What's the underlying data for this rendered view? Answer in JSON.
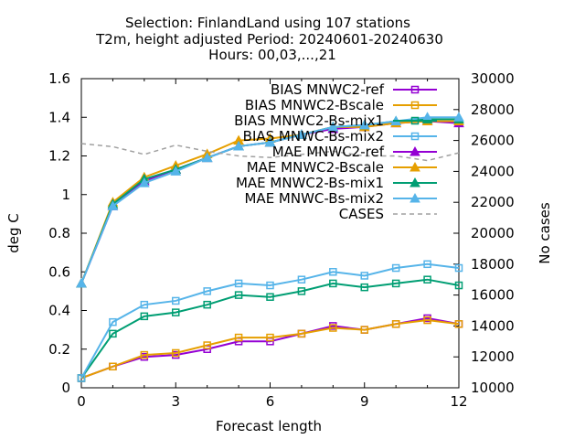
{
  "chart_data": {
    "type": "line",
    "title": [
      "Selection: FinlandLand using   107 stations",
      "T2m, height adjusted   Period: 20240601-20240630",
      "Hours: 00,03,...,21"
    ],
    "xlabel": "Forecast length",
    "ylabel": "deg C",
    "y2label": "No cases",
    "xlim": [
      0,
      12
    ],
    "ylim": [
      0,
      1.6
    ],
    "y2lim": [
      10000,
      30000
    ],
    "x_ticks": [
      "0",
      "3",
      "6",
      "9",
      "12"
    ],
    "y_ticks": [
      "0",
      "0.2",
      "0.4",
      "0.6",
      "0.8",
      "1",
      "1.2",
      "1.4",
      "1.6"
    ],
    "y2_ticks": [
      "10000",
      "12000",
      "14000",
      "16000",
      "18000",
      "20000",
      "22000",
      "24000",
      "26000",
      "28000",
      "30000"
    ],
    "legend_position": "top-right",
    "x": [
      0,
      1,
      2,
      3,
      4,
      5,
      6,
      7,
      8,
      9,
      10,
      11,
      12
    ],
    "series": [
      {
        "name": "BIAS MNWC2-ref",
        "color": "#9400d3",
        "marker": "square",
        "axis": "y",
        "values": [
          0.05,
          0.11,
          0.16,
          0.17,
          0.2,
          0.24,
          0.24,
          0.28,
          0.32,
          0.3,
          0.33,
          0.36,
          0.33
        ]
      },
      {
        "name": "BIAS MNWC2-Bscale",
        "color": "#e69f00",
        "marker": "square",
        "axis": "y",
        "values": [
          0.05,
          0.11,
          0.17,
          0.18,
          0.22,
          0.26,
          0.26,
          0.28,
          0.31,
          0.3,
          0.33,
          0.35,
          0.33
        ]
      },
      {
        "name": "BIAS MNWC2-Bs-mix1",
        "color": "#009e73",
        "marker": "square",
        "axis": "y",
        "values": [
          0.05,
          0.28,
          0.37,
          0.39,
          0.43,
          0.48,
          0.47,
          0.5,
          0.54,
          0.52,
          0.54,
          0.56,
          0.53
        ]
      },
      {
        "name": "BIAS MNWC-Bs-mix2",
        "color": "#56b4e9",
        "marker": "square",
        "axis": "y",
        "values": [
          0.05,
          0.34,
          0.43,
          0.45,
          0.5,
          0.54,
          0.53,
          0.56,
          0.6,
          0.58,
          0.62,
          0.64,
          0.62
        ]
      },
      {
        "name": "MAE MNWC2-ref",
        "color": "#9400d3",
        "marker": "triangle",
        "axis": "y",
        "values": [
          0.54,
          0.94,
          1.07,
          1.13,
          1.19,
          1.25,
          1.27,
          1.31,
          1.34,
          1.35,
          1.37,
          1.38,
          1.37
        ]
      },
      {
        "name": "MAE MNWC2-Bscale",
        "color": "#e69f00",
        "marker": "triangle",
        "axis": "y",
        "values": [
          0.54,
          0.96,
          1.09,
          1.15,
          1.21,
          1.28,
          1.29,
          1.31,
          1.35,
          1.35,
          1.37,
          1.38,
          1.38
        ]
      },
      {
        "name": "MAE MNWC2-Bs-mix1",
        "color": "#009e73",
        "marker": "triangle",
        "axis": "y",
        "values": [
          0.54,
          0.95,
          1.08,
          1.13,
          1.19,
          1.25,
          1.27,
          1.31,
          1.35,
          1.36,
          1.38,
          1.39,
          1.39
        ]
      },
      {
        "name": "MAE MNWC-Bs-mix2",
        "color": "#56b4e9",
        "marker": "triangle",
        "axis": "y",
        "values": [
          0.54,
          0.94,
          1.06,
          1.12,
          1.19,
          1.25,
          1.27,
          1.31,
          1.35,
          1.36,
          1.38,
          1.4,
          1.4
        ]
      },
      {
        "name": "CASES",
        "color": "#a0a0a0",
        "marker": "none",
        "dashed": true,
        "axis": "y2",
        "values": [
          25800,
          25600,
          25100,
          25700,
          25300,
          25000,
          24900,
          25100,
          25300,
          25000,
          25000,
          24700,
          25200
        ]
      }
    ]
  }
}
